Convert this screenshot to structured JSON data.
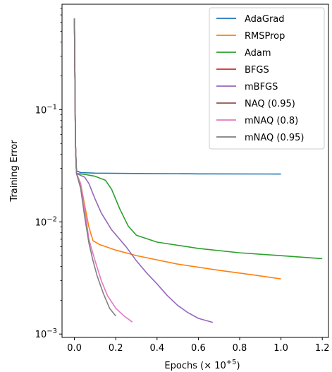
{
  "chart_data": {
    "type": "line",
    "xlabel": "Epochs (× 10",
    "xlabel_exp": "+5",
    "xlabel_close": ")",
    "ylabel": "Training Error",
    "xlim": [
      -0.06,
      1.23
    ],
    "ylim_log10": [
      -3.03,
      -0.06
    ],
    "yscale": "log",
    "legend_placement": "top-right",
    "grid": false,
    "xticks": [
      0.0,
      0.2,
      0.4,
      0.6,
      0.8,
      1.0,
      1.2
    ],
    "xtick_labels": [
      "0.0",
      "0.2",
      "0.4",
      "0.6",
      "0.8",
      "1.0",
      "1.2"
    ],
    "yticks": [
      {
        "value": 0.001,
        "base": "10",
        "exp": "−3"
      },
      {
        "value": 0.01,
        "base": "10",
        "exp": "−2"
      },
      {
        "value": 0.1,
        "base": "10",
        "exp": "−1"
      }
    ],
    "series": [
      {
        "name": "AdaGrad",
        "color": "#1f77b4",
        "points": [
          [
            0.0,
            0.65
          ],
          [
            0.005,
            0.05
          ],
          [
            0.01,
            0.0285
          ],
          [
            0.03,
            0.0275
          ],
          [
            0.1,
            0.0272
          ],
          [
            0.3,
            0.027
          ],
          [
            0.6,
            0.0268
          ],
          [
            1.0,
            0.0267
          ]
        ]
      },
      {
        "name": "RMSProp",
        "color": "#ff7f0e",
        "points": [
          [
            0.0,
            0.65
          ],
          [
            0.005,
            0.05
          ],
          [
            0.01,
            0.027
          ],
          [
            0.03,
            0.022
          ],
          [
            0.05,
            0.014
          ],
          [
            0.07,
            0.009
          ],
          [
            0.09,
            0.0068
          ],
          [
            0.12,
            0.0063
          ],
          [
            0.2,
            0.0056
          ],
          [
            0.3,
            0.005
          ],
          [
            0.5,
            0.0042
          ],
          [
            0.7,
            0.0037
          ],
          [
            0.85,
            0.0034
          ],
          [
            1.0,
            0.0031
          ]
        ]
      },
      {
        "name": "Adam",
        "color": "#2ca02c",
        "points": [
          [
            0.0,
            0.65
          ],
          [
            0.005,
            0.05
          ],
          [
            0.01,
            0.027
          ],
          [
            0.05,
            0.0265
          ],
          [
            0.1,
            0.0255
          ],
          [
            0.15,
            0.0235
          ],
          [
            0.18,
            0.0195
          ],
          [
            0.22,
            0.013
          ],
          [
            0.26,
            0.0092
          ],
          [
            0.3,
            0.0076
          ],
          [
            0.4,
            0.0066
          ],
          [
            0.6,
            0.0058
          ],
          [
            0.8,
            0.0053
          ],
          [
            1.0,
            0.005
          ],
          [
            1.2,
            0.0047
          ]
        ]
      },
      {
        "name": "BFGS",
        "color": "#d62728",
        "points": [
          [
            0.0,
            0.65
          ],
          [
            0.005,
            0.05
          ],
          [
            0.01,
            0.027
          ]
        ]
      },
      {
        "name": "mBFGS",
        "color": "#9467bd",
        "points": [
          [
            0.0,
            0.65
          ],
          [
            0.005,
            0.05
          ],
          [
            0.01,
            0.027
          ],
          [
            0.05,
            0.025
          ],
          [
            0.07,
            0.022
          ],
          [
            0.1,
            0.016
          ],
          [
            0.13,
            0.012
          ],
          [
            0.18,
            0.0085
          ],
          [
            0.25,
            0.006
          ],
          [
            0.3,
            0.0045
          ],
          [
            0.35,
            0.0035
          ],
          [
            0.4,
            0.0028
          ],
          [
            0.45,
            0.0022
          ],
          [
            0.5,
            0.0018
          ],
          [
            0.55,
            0.00155
          ],
          [
            0.6,
            0.00138
          ],
          [
            0.67,
            0.00127
          ]
        ]
      },
      {
        "name": "NAQ (0.95)",
        "color": "#8c564b",
        "points": [
          [
            0.0,
            0.65
          ],
          [
            0.005,
            0.05
          ],
          [
            0.01,
            0.027
          ]
        ]
      },
      {
        "name": "mNAQ (0.8)",
        "color": "#e377c2",
        "points": [
          [
            0.0,
            0.65
          ],
          [
            0.005,
            0.05
          ],
          [
            0.01,
            0.027
          ],
          [
            0.03,
            0.022
          ],
          [
            0.05,
            0.013
          ],
          [
            0.07,
            0.007
          ],
          [
            0.1,
            0.0045
          ],
          [
            0.13,
            0.003
          ],
          [
            0.16,
            0.0022
          ],
          [
            0.2,
            0.0017
          ],
          [
            0.24,
            0.00145
          ],
          [
            0.28,
            0.00128
          ]
        ]
      },
      {
        "name": "mNAQ (0.95)",
        "color": "#7f7f7f",
        "points": [
          [
            0.0,
            0.65
          ],
          [
            0.005,
            0.05
          ],
          [
            0.01,
            0.027
          ],
          [
            0.03,
            0.02
          ],
          [
            0.05,
            0.011
          ],
          [
            0.07,
            0.0065
          ],
          [
            0.09,
            0.0045
          ],
          [
            0.11,
            0.0033
          ],
          [
            0.14,
            0.0023
          ],
          [
            0.17,
            0.0017
          ],
          [
            0.2,
            0.00145
          ]
        ]
      }
    ]
  }
}
